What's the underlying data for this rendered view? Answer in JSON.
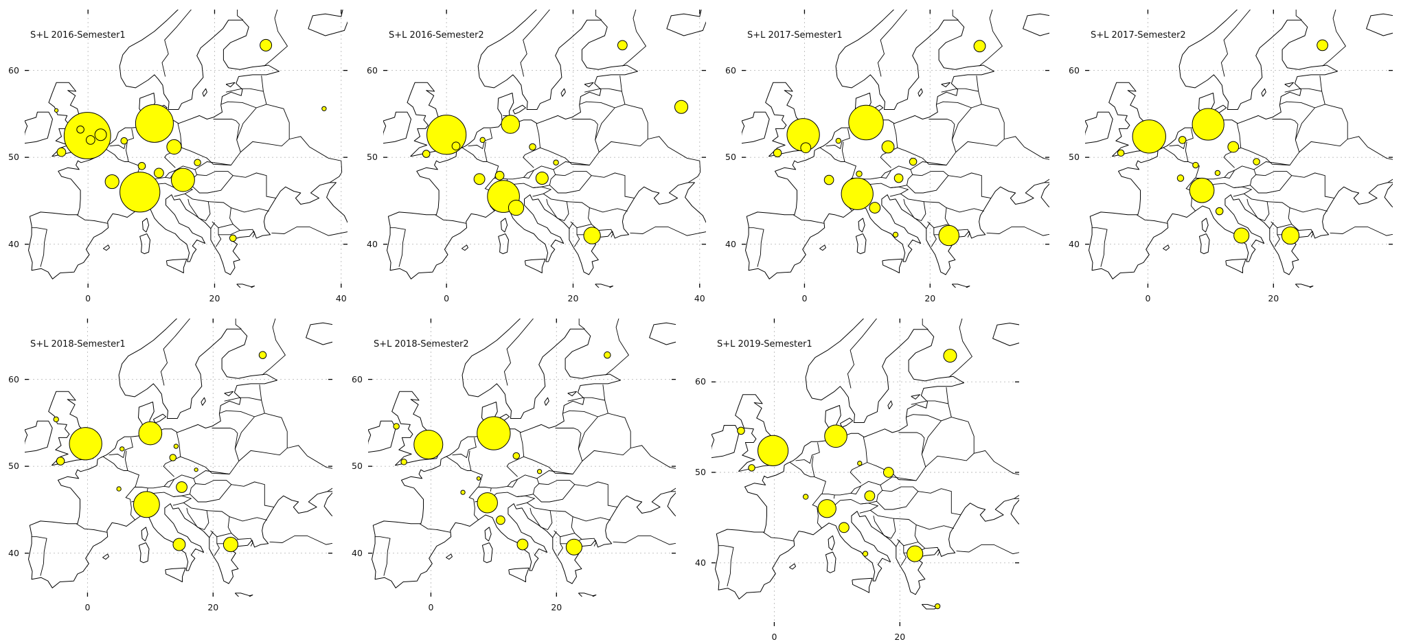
{
  "figure": {
    "bubble_color": "#ffff00",
    "bubble_edge_color": "#000000",
    "land_border_color": "#000000",
    "grid": "dotted",
    "region": "Europe"
  },
  "chart_data": [
    {
      "type": "bubble-map",
      "title": "S+L 2016-Semester1",
      "xlim": [
        -10,
        41
      ],
      "ylim": [
        35,
        67
      ],
      "xticks": [
        0,
        20,
        40
      ],
      "yticks": [
        40,
        50,
        60
      ],
      "points": [
        {
          "lon": -0.1,
          "lat": 52.5,
          "size": 64
        },
        {
          "lon": 10.5,
          "lat": 53.9,
          "size": 52
        },
        {
          "lon": 8.2,
          "lat": 46.0,
          "size": 55
        },
        {
          "lon": 3.8,
          "lat": 47.2,
          "size": 19
        },
        {
          "lon": 15.0,
          "lat": 47.4,
          "size": 32
        },
        {
          "lon": 13.6,
          "lat": 51.2,
          "size": 20
        },
        {
          "lon": 28.1,
          "lat": 62.9,
          "size": 16
        },
        {
          "lon": -4.2,
          "lat": 50.6,
          "size": 12
        },
        {
          "lon": 5.7,
          "lat": 51.9,
          "size": 9
        },
        {
          "lon": 11.2,
          "lat": 48.2,
          "size": 13
        },
        {
          "lon": 8.5,
          "lat": 49.0,
          "size": 10
        },
        {
          "lon": 17.3,
          "lat": 49.4,
          "size": 9
        },
        {
          "lon": 22.9,
          "lat": 40.7,
          "size": 9
        },
        {
          "lon": 37.3,
          "lat": 55.6,
          "size": 6
        },
        {
          "lon": -5.0,
          "lat": 55.4,
          "size": 5
        },
        {
          "lon": 2.0,
          "lat": 52.6,
          "size": 16
        },
        {
          "lon": 0.4,
          "lat": 52.0,
          "size": 12
        },
        {
          "lon": -1.2,
          "lat": 53.2,
          "size": 10
        }
      ]
    },
    {
      "type": "bubble-map",
      "title": "S+L 2016-Semester2",
      "xlim": [
        -10,
        41
      ],
      "ylim": [
        35,
        67
      ],
      "xticks": [
        0,
        20,
        40
      ],
      "yticks": [
        40,
        50,
        60
      ],
      "points": [
        {
          "lon": 0.0,
          "lat": 52.6,
          "size": 54
        },
        {
          "lon": 10.1,
          "lat": 53.8,
          "size": 25
        },
        {
          "lon": 9.0,
          "lat": 45.5,
          "size": 44
        },
        {
          "lon": 5.2,
          "lat": 47.5,
          "size": 15
        },
        {
          "lon": 15.1,
          "lat": 47.6,
          "size": 17
        },
        {
          "lon": 11.0,
          "lat": 44.2,
          "size": 21
        },
        {
          "lon": 23.0,
          "lat": 41.0,
          "size": 23
        },
        {
          "lon": 27.8,
          "lat": 62.9,
          "size": 13
        },
        {
          "lon": 37.1,
          "lat": 55.8,
          "size": 18
        },
        {
          "lon": 13.6,
          "lat": 51.2,
          "size": 9
        },
        {
          "lon": 8.4,
          "lat": 47.9,
          "size": 12
        },
        {
          "lon": 17.3,
          "lat": 49.4,
          "size": 7
        },
        {
          "lon": 5.7,
          "lat": 52.0,
          "size": 7
        },
        {
          "lon": -3.2,
          "lat": 50.4,
          "size": 10
        },
        {
          "lon": 1.5,
          "lat": 51.3,
          "size": 11
        }
      ]
    },
    {
      "type": "bubble-map",
      "title": "S+L 2017-Semester1",
      "xlim": [
        -10,
        39
      ],
      "ylim": [
        35,
        67
      ],
      "xticks": [
        0,
        20
      ],
      "yticks": [
        40,
        50,
        60
      ],
      "points": [
        {
          "lon": -0.2,
          "lat": 52.6,
          "size": 45
        },
        {
          "lon": 9.8,
          "lat": 54.0,
          "size": 48
        },
        {
          "lon": 8.4,
          "lat": 45.8,
          "size": 44
        },
        {
          "lon": 3.9,
          "lat": 47.4,
          "size": 13
        },
        {
          "lon": 15.0,
          "lat": 47.6,
          "size": 12
        },
        {
          "lon": 13.3,
          "lat": 51.2,
          "size": 17
        },
        {
          "lon": 23.0,
          "lat": 41.0,
          "size": 28
        },
        {
          "lon": 27.9,
          "lat": 62.8,
          "size": 16
        },
        {
          "lon": 11.2,
          "lat": 44.2,
          "size": 15
        },
        {
          "lon": 17.3,
          "lat": 49.5,
          "size": 10
        },
        {
          "lon": 14.5,
          "lat": 41.1,
          "size": 7
        },
        {
          "lon": 8.7,
          "lat": 48.1,
          "size": 8
        },
        {
          "lon": -4.3,
          "lat": 50.5,
          "size": 11
        },
        {
          "lon": 5.4,
          "lat": 51.9,
          "size": 7
        },
        {
          "lon": 0.2,
          "lat": 51.1,
          "size": 14
        }
      ]
    },
    {
      "type": "bubble-map",
      "title": "S+L 2017-Semester2",
      "xlim": [
        -10,
        39
      ],
      "ylim": [
        35,
        67
      ],
      "xticks": [
        0,
        20
      ],
      "yticks": [
        40,
        50,
        60
      ],
      "points": [
        {
          "lon": 0.2,
          "lat": 52.4,
          "size": 46
        },
        {
          "lon": 9.6,
          "lat": 53.8,
          "size": 44
        },
        {
          "lon": 8.6,
          "lat": 46.2,
          "size": 34
        },
        {
          "lon": 5.2,
          "lat": 47.6,
          "size": 9
        },
        {
          "lon": 13.6,
          "lat": 51.2,
          "size": 15
        },
        {
          "lon": 14.9,
          "lat": 41.0,
          "size": 21
        },
        {
          "lon": 22.7,
          "lat": 41.0,
          "size": 24
        },
        {
          "lon": 27.8,
          "lat": 62.9,
          "size": 15
        },
        {
          "lon": 11.4,
          "lat": 43.8,
          "size": 10
        },
        {
          "lon": 17.3,
          "lat": 49.5,
          "size": 9
        },
        {
          "lon": 11.1,
          "lat": 48.2,
          "size": 7
        },
        {
          "lon": 7.6,
          "lat": 49.1,
          "size": 8
        },
        {
          "lon": -4.3,
          "lat": 50.5,
          "size": 9
        },
        {
          "lon": 5.5,
          "lat": 52.0,
          "size": 10
        }
      ]
    },
    {
      "type": "bubble-map",
      "title": "S+L 2018-Semester1",
      "xlim": [
        -10,
        39
      ],
      "ylim": [
        35,
        67
      ],
      "xticks": [
        0,
        20
      ],
      "yticks": [
        40,
        50,
        60
      ],
      "points": [
        {
          "lon": -0.3,
          "lat": 52.6,
          "size": 45
        },
        {
          "lon": 10.0,
          "lat": 53.8,
          "size": 32
        },
        {
          "lon": 9.4,
          "lat": 45.6,
          "size": 36
        },
        {
          "lon": 15.0,
          "lat": 47.6,
          "size": 15
        },
        {
          "lon": 14.6,
          "lat": 41.0,
          "size": 17
        },
        {
          "lon": 22.8,
          "lat": 41.0,
          "size": 20
        },
        {
          "lon": 27.9,
          "lat": 62.8,
          "size": 10
        },
        {
          "lon": 5.0,
          "lat": 47.4,
          "size": 6
        },
        {
          "lon": 13.6,
          "lat": 51.0,
          "size": 9
        },
        {
          "lon": 17.3,
          "lat": 49.6,
          "size": 5
        },
        {
          "lon": -5.0,
          "lat": 55.4,
          "size": 7
        },
        {
          "lon": -4.3,
          "lat": 50.6,
          "size": 11
        },
        {
          "lon": 5.5,
          "lat": 52.0,
          "size": 6
        },
        {
          "lon": 14.1,
          "lat": 52.3,
          "size": 6
        }
      ]
    },
    {
      "type": "bubble-map",
      "title": "S+L 2018-Semester2",
      "xlim": [
        -10,
        39
      ],
      "ylim": [
        35,
        67
      ],
      "xticks": [
        0,
        20
      ],
      "yticks": [
        40,
        50,
        60
      ],
      "points": [
        {
          "lon": -0.4,
          "lat": 52.5,
          "size": 40
        },
        {
          "lon": 10.0,
          "lat": 53.8,
          "size": 46
        },
        {
          "lon": 9.0,
          "lat": 45.8,
          "size": 28
        },
        {
          "lon": 14.6,
          "lat": 41.0,
          "size": 15
        },
        {
          "lon": 22.8,
          "lat": 40.7,
          "size": 22
        },
        {
          "lon": 28.1,
          "lat": 62.8,
          "size": 9
        },
        {
          "lon": 5.1,
          "lat": 47.0,
          "size": 6
        },
        {
          "lon": 13.6,
          "lat": 51.2,
          "size": 9
        },
        {
          "lon": 17.3,
          "lat": 49.4,
          "size": 6
        },
        {
          "lon": -4.3,
          "lat": 50.5,
          "size": 8
        },
        {
          "lon": -5.5,
          "lat": 54.6,
          "size": 8
        },
        {
          "lon": 7.6,
          "lat": 48.6,
          "size": 5
        },
        {
          "lon": 11.1,
          "lat": 43.8,
          "size": 12
        }
      ]
    },
    {
      "type": "bubble-map",
      "title": "S+L 2019-Semester1",
      "xlim": [
        -10,
        39
      ],
      "ylim": [
        33,
        67
      ],
      "xticks": [
        0,
        20
      ],
      "yticks": [
        40,
        50,
        60
      ],
      "points": [
        {
          "lon": -0.2,
          "lat": 52.4,
          "size": 42
        },
        {
          "lon": 9.8,
          "lat": 54.0,
          "size": 31
        },
        {
          "lon": 8.4,
          "lat": 46.0,
          "size": 25
        },
        {
          "lon": 15.2,
          "lat": 47.4,
          "size": 14
        },
        {
          "lon": 18.2,
          "lat": 50.0,
          "size": 14
        },
        {
          "lon": 11.1,
          "lat": 43.9,
          "size": 14
        },
        {
          "lon": 22.4,
          "lat": 41.0,
          "size": 22
        },
        {
          "lon": 28.0,
          "lat": 62.9,
          "size": 18
        },
        {
          "lon": 14.5,
          "lat": 41.0,
          "size": 7
        },
        {
          "lon": 26.0,
          "lat": 35.2,
          "size": 7
        },
        {
          "lon": 5.0,
          "lat": 47.3,
          "size": 7
        },
        {
          "lon": -5.3,
          "lat": 54.6,
          "size": 10
        },
        {
          "lon": -3.6,
          "lat": 50.5,
          "size": 9
        },
        {
          "lon": 13.6,
          "lat": 51.0,
          "size": 6
        }
      ]
    }
  ]
}
